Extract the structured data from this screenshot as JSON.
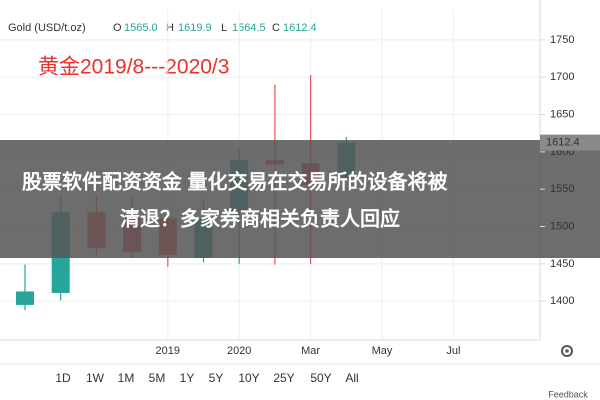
{
  "chart_data": {
    "type": "candlestick",
    "instrument": "Gold (USD/t.oz)",
    "ohlc_header": [
      {
        "key": "O",
        "text": "1565.0"
      },
      {
        "key": "H",
        "text": "1619.9"
      },
      {
        "key": "L",
        "text": "1564.5"
      },
      {
        "key": "C",
        "text": "1612.4"
      }
    ],
    "annotation": "黄金2019/8---2020/3",
    "categories": [
      null,
      null,
      null,
      null,
      "2019",
      null,
      "2020",
      null,
      "Mar",
      null,
      "May",
      null,
      "Jul",
      null,
      null
    ],
    "open": [
      1395,
      1411,
      1519,
      1515,
      1511,
      1458,
      1519,
      1589,
      1585,
      1565.0,
      null,
      null,
      null,
      null,
      null
    ],
    "high": [
      1449,
      1541,
      1542,
      1540,
      1522,
      1536,
      1603,
      1690,
      1703,
      1619.9,
      null,
      null,
      null,
      null,
      null
    ],
    "low": [
      1388,
      1401,
      1462,
      1458,
      1446,
      1452,
      1450,
      1449,
      1450,
      1564.5,
      null,
      null,
      null,
      null,
      null
    ],
    "close": [
      1413,
      1519,
      1471,
      1466,
      1462,
      1512,
      1589,
      1583,
      1556,
      1612.4,
      null,
      null,
      null,
      null,
      null
    ],
    "up_color": "#26a69a",
    "down_color": "#ef5350",
    "ylim": [
      1348,
      1790
    ],
    "yticks": [
      1400,
      1450,
      1500,
      1550,
      1600,
      1650,
      1700,
      1750
    ],
    "grid": true
  },
  "overlay": {
    "lines": [
      "股票软件配资资金 量化交易在交易所的设备将被",
      "清退？多家券商相关负责人回应"
    ]
  },
  "range_buttons": [
    "1D",
    "1W",
    "1M",
    "5M",
    "1Y",
    "5Y",
    "10Y",
    "25Y",
    "50Y",
    "All"
  ],
  "feedback": "Feedback"
}
